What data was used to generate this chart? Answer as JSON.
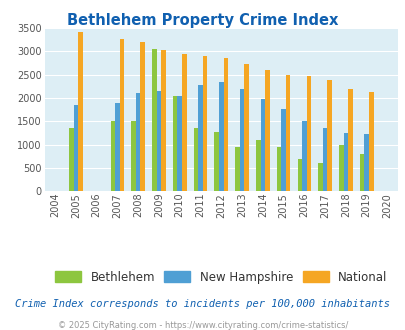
{
  "title": "Bethlehem Property Crime Index",
  "all_years": [
    2004,
    2005,
    2006,
    2007,
    2008,
    2009,
    2010,
    2011,
    2012,
    2013,
    2014,
    2015,
    2016,
    2017,
    2018,
    2019,
    2020
  ],
  "data_years": [
    2005,
    2007,
    2008,
    2009,
    2010,
    2011,
    2012,
    2013,
    2014,
    2015,
    2016,
    2017,
    2018,
    2019
  ],
  "bethlehem": [
    1350,
    1500,
    1500,
    3060,
    2050,
    1350,
    1270,
    960,
    1100,
    950,
    700,
    600,
    1000,
    800
  ],
  "new_hampshire": [
    1850,
    1900,
    2100,
    2150,
    2050,
    2280,
    2340,
    2190,
    1970,
    1760,
    1500,
    1360,
    1260,
    1220
  ],
  "national": [
    3420,
    3270,
    3200,
    3040,
    2950,
    2900,
    2850,
    2720,
    2600,
    2500,
    2470,
    2380,
    2200,
    2140
  ],
  "colors": {
    "bethlehem": "#8dc63f",
    "new_hampshire": "#4f9fd4",
    "national": "#f5a623"
  },
  "ylim": [
    0,
    3500
  ],
  "yticks": [
    0,
    500,
    1000,
    1500,
    2000,
    2500,
    3000,
    3500
  ],
  "xlim_min": 2003.5,
  "xlim_max": 2020.5,
  "bg_color": "#ddeef5",
  "grid_color": "#ffffff",
  "title_color": "#1060b0",
  "legend_label_color": "#333333",
  "subtitle_color": "#1060b0",
  "footer_color": "#999999",
  "footer_text": "© 2025 CityRating.com - https://www.cityrating.com/crime-statistics/",
  "subtitle_text": "Crime Index corresponds to incidents per 100,000 inhabitants",
  "bar_width": 0.22
}
